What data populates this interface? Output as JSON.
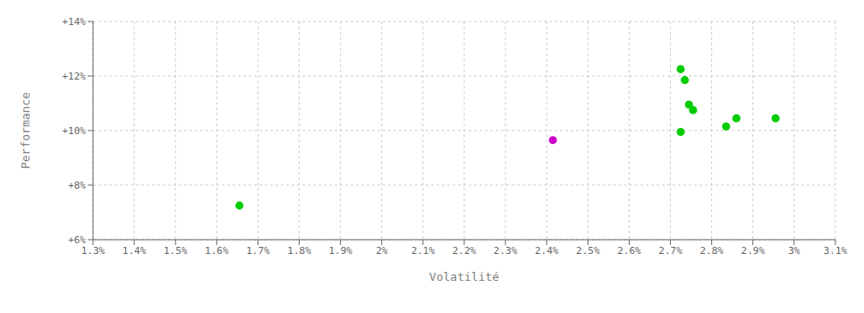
{
  "chart_data": {
    "type": "scatter",
    "xlabel": "Volatilité",
    "ylabel": "Performance",
    "xlim": [
      0.013,
      0.031
    ],
    "ylim": [
      0.06,
      0.14
    ],
    "xticks": [
      {
        "value": 0.013,
        "label": "1.3%"
      },
      {
        "value": 0.014,
        "label": "1.4%"
      },
      {
        "value": 0.015,
        "label": "1.5%"
      },
      {
        "value": 0.016,
        "label": "1.6%"
      },
      {
        "value": 0.017,
        "label": "1.7%"
      },
      {
        "value": 0.018,
        "label": "1.8%"
      },
      {
        "value": 0.019,
        "label": "1.9%"
      },
      {
        "value": 0.02,
        "label": "2%"
      },
      {
        "value": 0.021,
        "label": "2.1%"
      },
      {
        "value": 0.022,
        "label": "2.2%"
      },
      {
        "value": 0.023,
        "label": "2.3%"
      },
      {
        "value": 0.024,
        "label": "2.4%"
      },
      {
        "value": 0.025,
        "label": "2.5%"
      },
      {
        "value": 0.026,
        "label": "2.6%"
      },
      {
        "value": 0.027,
        "label": "2.7%"
      },
      {
        "value": 0.028,
        "label": "2.8%"
      },
      {
        "value": 0.029,
        "label": "2.9%"
      },
      {
        "value": 0.03,
        "label": "3%"
      },
      {
        "value": 0.031,
        "label": "3.1%"
      }
    ],
    "yticks": [
      {
        "value": 0.06,
        "label": "+6%"
      },
      {
        "value": 0.08,
        "label": "+8%"
      },
      {
        "value": 0.1,
        "label": "+10%"
      },
      {
        "value": 0.12,
        "label": "+12%"
      },
      {
        "value": 0.14,
        "label": "+14%"
      }
    ],
    "grid": true,
    "series": [
      {
        "color": "#00cc00",
        "x": [
          0.01655,
          0.02725,
          0.02735,
          0.02745,
          0.02755,
          0.02725,
          0.02835,
          0.0286,
          0.02955
        ],
        "values": [
          0.0725,
          0.1225,
          0.1185,
          0.1095,
          0.1075,
          0.0995,
          0.1015,
          0.1045,
          0.1045
        ]
      },
      {
        "color": "#cc00cc",
        "x": [
          0.02415
        ],
        "values": [
          0.0965
        ]
      }
    ]
  }
}
